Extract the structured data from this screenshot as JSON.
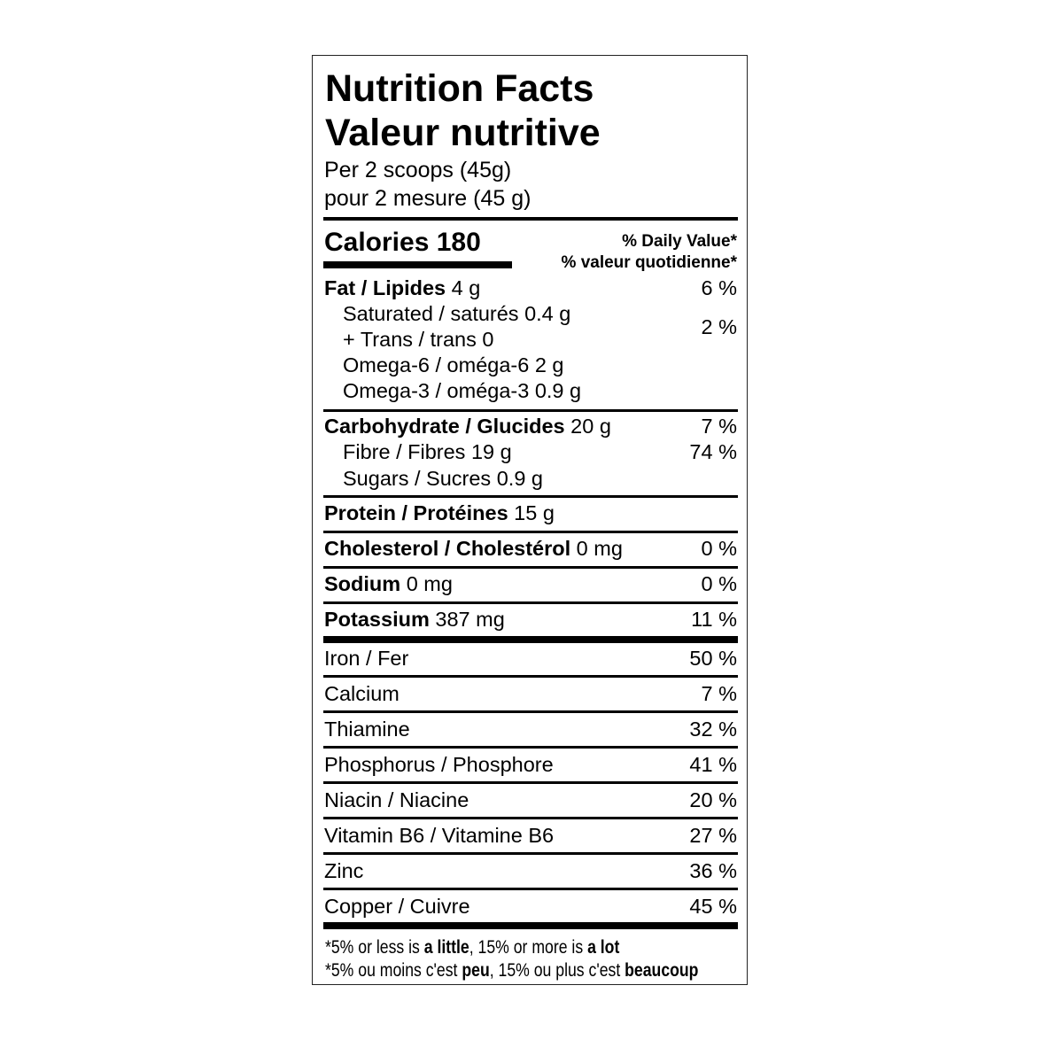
{
  "title_en": "Nutrition Facts",
  "title_fr": "Valeur nutritive",
  "serving_en": "Per 2 scoops (45g)",
  "serving_fr": "pour 2 mesure (45 g)",
  "calories_label": "Calories 180",
  "dv_header_en": "% Daily Value*",
  "dv_header_fr": "% valeur quotidienne*",
  "fat": {
    "name": "Fat / Lipides",
    "amount": "4 g",
    "dv": "6 %"
  },
  "saturated": {
    "name": "Saturated / saturés 0.4 g"
  },
  "trans": {
    "name": "+ Trans / trans 0"
  },
  "sat_trans_dv": "2 %",
  "omega6": "Omega-6 / oméga-6 2 g",
  "omega3": "Omega-3 / oméga-3 0.9 g",
  "carb": {
    "name": "Carbohydrate / Glucides",
    "amount": "20 g",
    "dv": "7 %"
  },
  "fibre": {
    "name": "Fibre / Fibres 19 g",
    "dv": "74 %"
  },
  "sugars": {
    "name": "Sugars / Sucres 0.9 g"
  },
  "protein": {
    "name": "Protein / Protéines",
    "amount": "15 g"
  },
  "cholesterol": {
    "name": "Cholesterol / Cholestérol",
    "amount": "0 mg",
    "dv": "0 %"
  },
  "sodium": {
    "name": "Sodium",
    "amount": "0 mg",
    "dv": "0 %"
  },
  "potassium": {
    "name": "Potassium",
    "amount": "387 mg",
    "dv": "11 %"
  },
  "minerals": [
    {
      "name": "Iron / Fer",
      "dv": "50 %"
    },
    {
      "name": "Calcium",
      "dv": "7 %"
    },
    {
      "name": "Thiamine",
      "dv": "32 %"
    },
    {
      "name": "Phosphorus / Phosphore",
      "dv": "41 %"
    },
    {
      "name": "Niacin / Niacine",
      "dv": "20 %"
    },
    {
      "name": "Vitamin B6 / Vitamine B6",
      "dv": "27 %"
    },
    {
      "name": "Zinc",
      "dv": "36 %"
    },
    {
      "name": "Copper / Cuivre",
      "dv": "45 %"
    }
  ],
  "footnote_en": {
    "a": "*5% or less is ",
    "b": "a little",
    "c": ", 15% or more is ",
    "d": "a lot"
  },
  "footnote_fr": {
    "a": "*5% ou moins c'est ",
    "b": "peu",
    "c": ", 15% ou plus c'est ",
    "d": "beaucoup"
  }
}
